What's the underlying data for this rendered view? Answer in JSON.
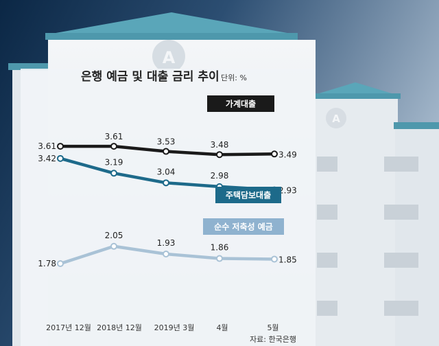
{
  "chart_data": {
    "type": "line",
    "title": "은행 예금 및 대출 금리 추이",
    "unit": "단위: %",
    "source": "자료: 한국은행",
    "categories": [
      "2017년 12월",
      "2018년 12월",
      "2019년 3월",
      "4월",
      "5월"
    ],
    "ylim": [
      1.5,
      3.8
    ],
    "grid": false,
    "series": [
      {
        "name": "가계대출",
        "values": [
          3.61,
          3.61,
          3.53,
          3.48,
          3.49
        ],
        "color": "#1a1a1a",
        "label_bg": "#1a1a1a"
      },
      {
        "name": "주택담보대출",
        "values": [
          3.42,
          3.19,
          3.04,
          2.98,
          2.93
        ],
        "color": "#1d6a8a",
        "label_bg": "#1d6a8a"
      },
      {
        "name": "순수 저축성 예금",
        "values": [
          1.78,
          2.05,
          1.93,
          1.86,
          1.85
        ],
        "color": "#a9c2d6",
        "label_bg": "#8fb2cf"
      }
    ]
  },
  "background": {
    "sky_dark": "#0d2a48",
    "sky_light": "#9fb3c8",
    "building": "#eef1f4",
    "roof": "#5aa6b9",
    "logo_letter": "A"
  }
}
